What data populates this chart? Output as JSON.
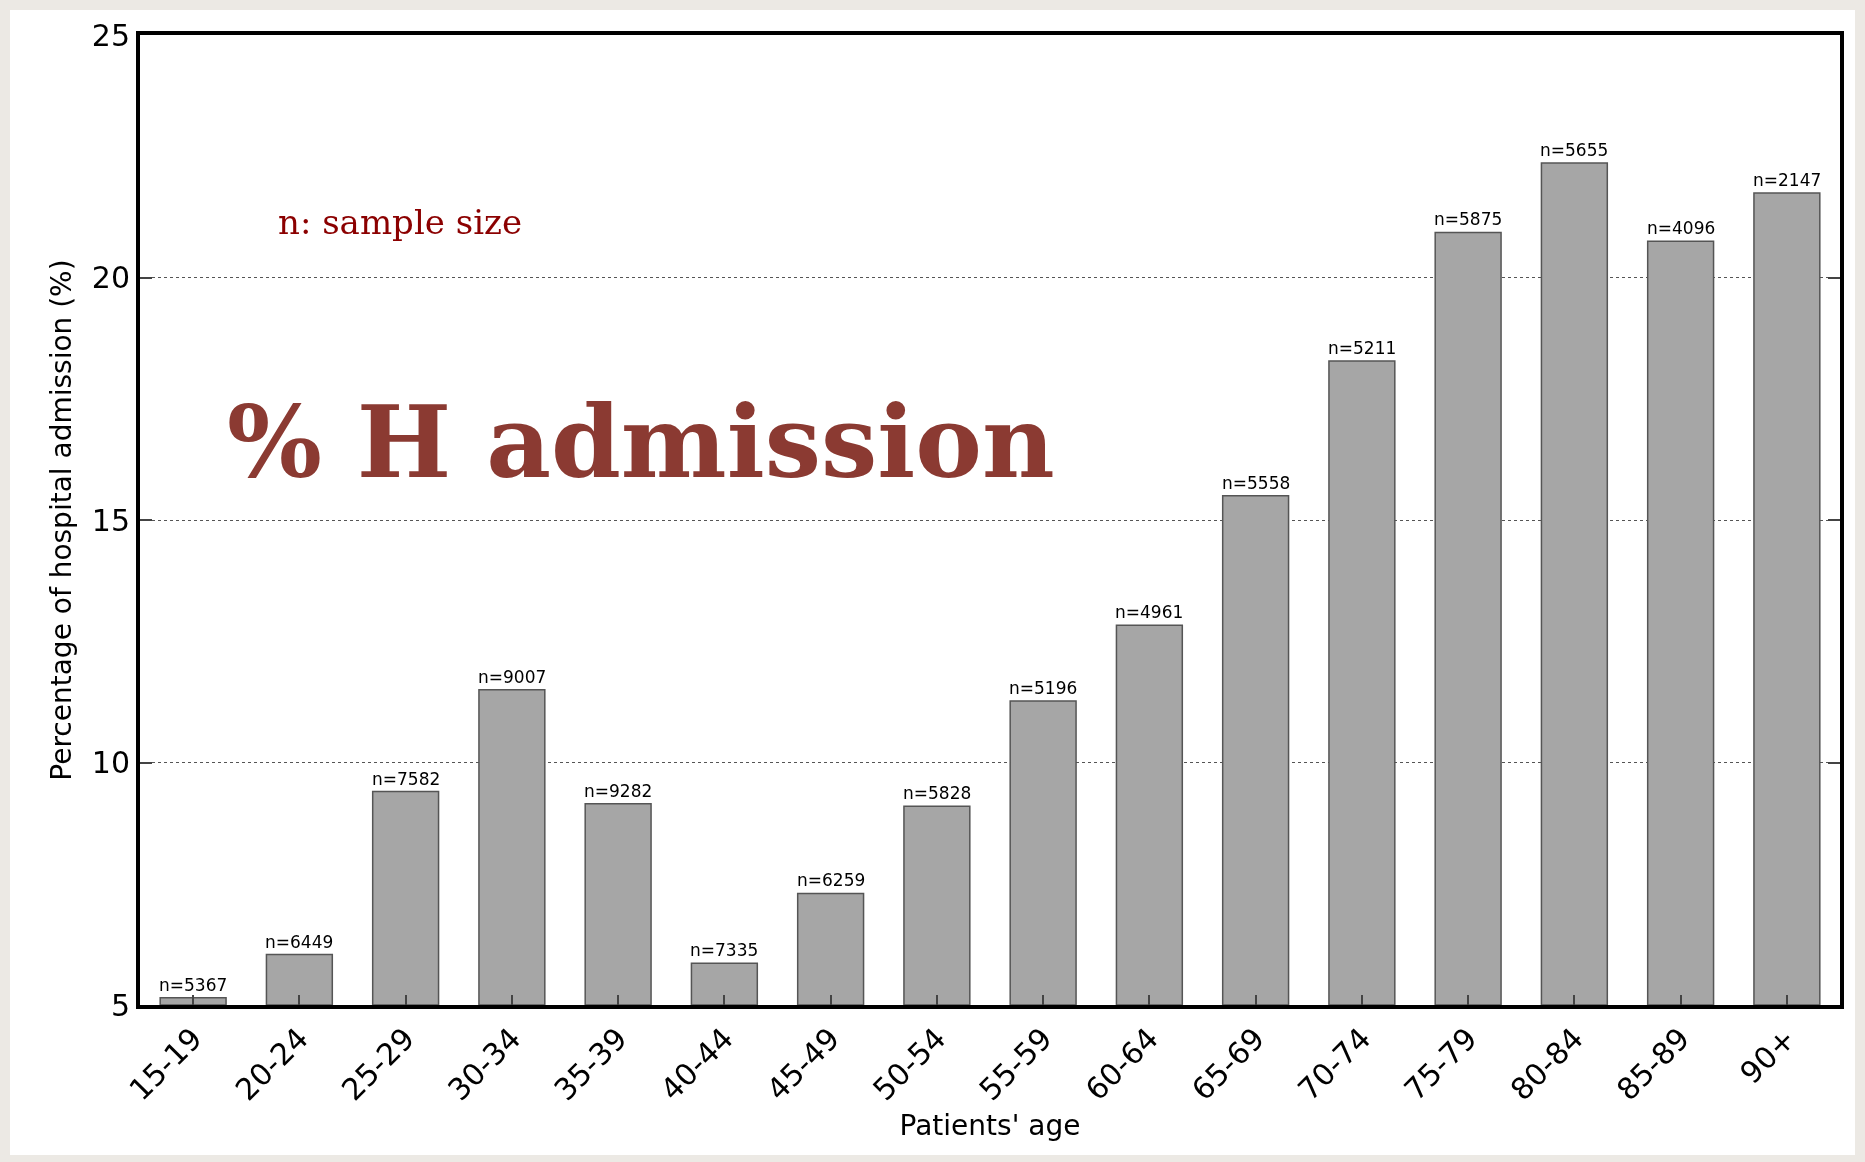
{
  "chart_data": {
    "type": "bar",
    "xlabel": "Patients' age",
    "ylabel": "Percentage of hospital admission (%)",
    "categories": [
      "15-19",
      "20-24",
      "25-29",
      "30-34",
      "35-39",
      "40-44",
      "45-49",
      "50-54",
      "55-59",
      "60-64",
      "65-69",
      "70-74",
      "75-79",
      "80-84",
      "85-89",
      "90+"
    ],
    "values": [
      5.15,
      6.04,
      9.4,
      11.5,
      9.15,
      5.86,
      7.3,
      9.1,
      11.27,
      12.83,
      15.5,
      18.28,
      20.93,
      22.36,
      20.75,
      21.74
    ],
    "color": "#a6a6a6",
    "ylim": [
      5,
      25
    ],
    "yticks": [
      5,
      10,
      15,
      20,
      25
    ],
    "grid": "y",
    "annotations": [
      "n: sample size",
      "% H admission",
      {
        "text": "n=5367",
        "x": "15-19",
        "y": 5.15
      },
      {
        "text": "n=6449",
        "x": "20-24",
        "y": 6.04
      },
      {
        "text": "n=7582",
        "x": "25-29",
        "y": 9.4
      },
      {
        "text": "n=9007",
        "x": "30-34",
        "y": 11.5
      },
      {
        "text": "n=9282",
        "x": "35-39",
        "y": 9.15
      },
      {
        "text": "n=7335",
        "x": "40-44",
        "y": 5.86
      },
      {
        "text": "n=6259",
        "x": "45-49",
        "y": 7.3
      },
      {
        "text": "n=5828",
        "x": "50-54",
        "y": 9.1
      },
      {
        "text": "n=5196",
        "x": "55-59",
        "y": 11.27
      },
      {
        "text": "n=4961",
        "x": "60-64",
        "y": 12.83
      },
      {
        "text": "n=5558",
        "x": "65-69",
        "y": 15.5
      },
      {
        "text": "n=5211",
        "x": "70-74",
        "y": 18.28
      },
      {
        "text": "n=5875",
        "x": "75-79",
        "y": 20.93
      },
      {
        "text": "n=5655",
        "x": "80-84",
        "y": 22.36
      },
      {
        "text": "n=4096",
        "x": "85-89",
        "y": 20.75
      },
      {
        "text": "n=2147",
        "x": "90+",
        "y": 21.74
      }
    ]
  }
}
